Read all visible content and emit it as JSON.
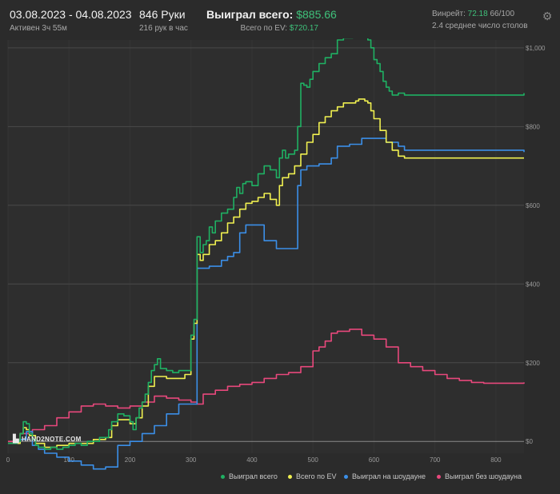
{
  "header": {
    "date_range": "03.08.2023 - 04.08.2023",
    "active": "Активен 3ч 55м",
    "hands": "846 Руки",
    "hands_per_hour": "216 рук в час",
    "won_label": "Выиграл всего:",
    "won_value": "$885.66",
    "ev_label": "Всего по EV:",
    "ev_value": "$720.17",
    "winrate_label": "Винрейт:",
    "winrate_value": "72.18",
    "winrate_rest": "66/100",
    "tables": "2.4 среднее число столов",
    "settings_icon": "gear-icon"
  },
  "watermark": {
    "text": "HAND2NOTE.COM"
  },
  "colors": {
    "won": "#1fb163",
    "ev": "#f0f050",
    "showdown": "#3b8fe8",
    "no_showdown": "#e8487c",
    "background": "#2b2b2b",
    "grid": "#4a4a4a"
  },
  "chart_data": {
    "type": "line",
    "title": "",
    "xlabel": "",
    "ylabel": "",
    "xlim": [
      0,
      846
    ],
    "ylim": [
      -30,
      1020
    ],
    "x_ticks": [
      "0",
      "100",
      "200",
      "300",
      "400",
      "500",
      "600",
      "700",
      "800"
    ],
    "y_ticks": [
      "$0",
      "$200",
      "$400",
      "$600",
      "$800",
      "$1,000"
    ],
    "grid": true,
    "legend_position": "bottom-right",
    "series": [
      {
        "key": "won",
        "name": "Выиграл всего",
        "points": [
          [
            0,
            -5
          ],
          [
            10,
            -5
          ],
          [
            15,
            0
          ],
          [
            20,
            20
          ],
          [
            25,
            50
          ],
          [
            30,
            45
          ],
          [
            35,
            20
          ],
          [
            40,
            5
          ],
          [
            45,
            -10
          ],
          [
            50,
            -15
          ],
          [
            60,
            -20
          ],
          [
            70,
            -15
          ],
          [
            80,
            -20
          ],
          [
            90,
            -15
          ],
          [
            100,
            -10
          ],
          [
            110,
            -5
          ],
          [
            120,
            -10
          ],
          [
            130,
            0
          ],
          [
            140,
            0
          ],
          [
            150,
            10
          ],
          [
            160,
            10
          ],
          [
            165,
            30
          ],
          [
            170,
            50
          ],
          [
            180,
            70
          ],
          [
            190,
            65
          ],
          [
            200,
            50
          ],
          [
            205,
            30
          ],
          [
            210,
            60
          ],
          [
            215,
            85
          ],
          [
            220,
            100
          ],
          [
            225,
            120
          ],
          [
            230,
            150
          ],
          [
            235,
            180
          ],
          [
            240,
            195
          ],
          [
            245,
            210
          ],
          [
            250,
            185
          ],
          [
            260,
            180
          ],
          [
            270,
            175
          ],
          [
            280,
            180
          ],
          [
            290,
            180
          ],
          [
            300,
            270
          ],
          [
            305,
            310
          ],
          [
            310,
            520
          ],
          [
            315,
            480
          ],
          [
            320,
            500
          ],
          [
            325,
            510
          ],
          [
            330,
            545
          ],
          [
            335,
            530
          ],
          [
            340,
            560
          ],
          [
            345,
            560
          ],
          [
            350,
            580
          ],
          [
            360,
            590
          ],
          [
            370,
            620
          ],
          [
            375,
            645
          ],
          [
            380,
            630
          ],
          [
            385,
            655
          ],
          [
            390,
            660
          ],
          [
            400,
            650
          ],
          [
            410,
            680
          ],
          [
            420,
            700
          ],
          [
            430,
            690
          ],
          [
            440,
            670
          ],
          [
            445,
            720
          ],
          [
            450,
            740
          ],
          [
            455,
            720
          ],
          [
            460,
            730
          ],
          [
            470,
            740
          ],
          [
            475,
            800
          ],
          [
            480,
            910
          ],
          [
            485,
            905
          ],
          [
            490,
            900
          ],
          [
            495,
            920
          ],
          [
            500,
            940
          ],
          [
            510,
            960
          ],
          [
            520,
            975
          ],
          [
            530,
            985
          ],
          [
            540,
            1020
          ],
          [
            550,
            1025
          ],
          [
            560,
            1025
          ],
          [
            565,
            1028
          ],
          [
            570,
            1030
          ],
          [
            575,
            1035
          ],
          [
            580,
            1035
          ],
          [
            585,
            1030
          ],
          [
            590,
            1020
          ],
          [
            595,
            1000
          ],
          [
            600,
            970
          ],
          [
            605,
            960
          ],
          [
            610,
            940
          ],
          [
            615,
            915
          ],
          [
            620,
            900
          ],
          [
            625,
            890
          ],
          [
            630,
            880
          ],
          [
            640,
            885
          ],
          [
            650,
            880
          ],
          [
            660,
            880
          ],
          [
            846,
            885
          ]
        ]
      },
      {
        "key": "ev",
        "name": "Всего по EV",
        "points": [
          [
            0,
            -5
          ],
          [
            10,
            -5
          ],
          [
            20,
            20
          ],
          [
            25,
            35
          ],
          [
            30,
            30
          ],
          [
            35,
            15
          ],
          [
            45,
            -5
          ],
          [
            60,
            -15
          ],
          [
            80,
            -10
          ],
          [
            100,
            -5
          ],
          [
            120,
            -5
          ],
          [
            140,
            5
          ],
          [
            160,
            10
          ],
          [
            170,
            40
          ],
          [
            180,
            55
          ],
          [
            200,
            45
          ],
          [
            210,
            60
          ],
          [
            220,
            90
          ],
          [
            230,
            140
          ],
          [
            240,
            165
          ],
          [
            250,
            165
          ],
          [
            260,
            160
          ],
          [
            270,
            160
          ],
          [
            280,
            160
          ],
          [
            290,
            170
          ],
          [
            300,
            260
          ],
          [
            305,
            300
          ],
          [
            310,
            475
          ],
          [
            315,
            460
          ],
          [
            320,
            475
          ],
          [
            330,
            500
          ],
          [
            340,
            510
          ],
          [
            350,
            530
          ],
          [
            360,
            555
          ],
          [
            370,
            570
          ],
          [
            380,
            590
          ],
          [
            390,
            605
          ],
          [
            400,
            610
          ],
          [
            410,
            620
          ],
          [
            420,
            630
          ],
          [
            430,
            615
          ],
          [
            440,
            600
          ],
          [
            445,
            650
          ],
          [
            450,
            670
          ],
          [
            460,
            680
          ],
          [
            470,
            700
          ],
          [
            480,
            730
          ],
          [
            490,
            760
          ],
          [
            500,
            780
          ],
          [
            510,
            810
          ],
          [
            520,
            825
          ],
          [
            530,
            840
          ],
          [
            540,
            850
          ],
          [
            550,
            860
          ],
          [
            560,
            860
          ],
          [
            570,
            865
          ],
          [
            575,
            870
          ],
          [
            580,
            870
          ],
          [
            585,
            865
          ],
          [
            590,
            860
          ],
          [
            595,
            840
          ],
          [
            600,
            820
          ],
          [
            610,
            790
          ],
          [
            620,
            760
          ],
          [
            630,
            740
          ],
          [
            640,
            725
          ],
          [
            650,
            720
          ],
          [
            660,
            720
          ],
          [
            846,
            720
          ]
        ]
      },
      {
        "key": "showdown",
        "name": "Выиграл на шоудауне",
        "points": [
          [
            0,
            -5
          ],
          [
            10,
            -5
          ],
          [
            20,
            5
          ],
          [
            30,
            25
          ],
          [
            40,
            -10
          ],
          [
            50,
            -20
          ],
          [
            60,
            -30
          ],
          [
            80,
            -40
          ],
          [
            100,
            -50
          ],
          [
            120,
            -60
          ],
          [
            140,
            -70
          ],
          [
            160,
            -65
          ],
          [
            180,
            -10
          ],
          [
            200,
            0
          ],
          [
            220,
            20
          ],
          [
            240,
            40
          ],
          [
            260,
            70
          ],
          [
            280,
            95
          ],
          [
            300,
            95
          ],
          [
            310,
            440
          ],
          [
            330,
            445
          ],
          [
            345,
            445
          ],
          [
            350,
            460
          ],
          [
            360,
            470
          ],
          [
            370,
            480
          ],
          [
            380,
            530
          ],
          [
            390,
            550
          ],
          [
            410,
            550
          ],
          [
            420,
            510
          ],
          [
            440,
            490
          ],
          [
            460,
            490
          ],
          [
            470,
            490
          ],
          [
            475,
            650
          ],
          [
            480,
            690
          ],
          [
            490,
            700
          ],
          [
            500,
            700
          ],
          [
            510,
            705
          ],
          [
            530,
            720
          ],
          [
            540,
            750
          ],
          [
            560,
            755
          ],
          [
            580,
            770
          ],
          [
            600,
            770
          ],
          [
            620,
            760
          ],
          [
            640,
            750
          ],
          [
            650,
            740
          ],
          [
            846,
            735
          ]
        ]
      },
      {
        "key": "no_showdown",
        "name": "Выиграл без шоудауна",
        "points": [
          [
            0,
            0
          ],
          [
            20,
            20
          ],
          [
            40,
            30
          ],
          [
            60,
            40
          ],
          [
            80,
            60
          ],
          [
            100,
            75
          ],
          [
            120,
            90
          ],
          [
            140,
            95
          ],
          [
            160,
            90
          ],
          [
            180,
            85
          ],
          [
            200,
            90
          ],
          [
            220,
            100
          ],
          [
            240,
            115
          ],
          [
            260,
            110
          ],
          [
            280,
            105
          ],
          [
            300,
            100
          ],
          [
            310,
            95
          ],
          [
            320,
            120
          ],
          [
            340,
            130
          ],
          [
            360,
            140
          ],
          [
            380,
            145
          ],
          [
            400,
            150
          ],
          [
            420,
            160
          ],
          [
            440,
            170
          ],
          [
            460,
            175
          ],
          [
            480,
            190
          ],
          [
            500,
            230
          ],
          [
            510,
            240
          ],
          [
            520,
            255
          ],
          [
            530,
            275
          ],
          [
            540,
            280
          ],
          [
            560,
            285
          ],
          [
            580,
            270
          ],
          [
            600,
            260
          ],
          [
            620,
            240
          ],
          [
            640,
            200
          ],
          [
            660,
            190
          ],
          [
            680,
            180
          ],
          [
            700,
            170
          ],
          [
            720,
            160
          ],
          [
            740,
            155
          ],
          [
            760,
            150
          ],
          [
            780,
            148
          ],
          [
            846,
            150
          ]
        ]
      }
    ]
  }
}
